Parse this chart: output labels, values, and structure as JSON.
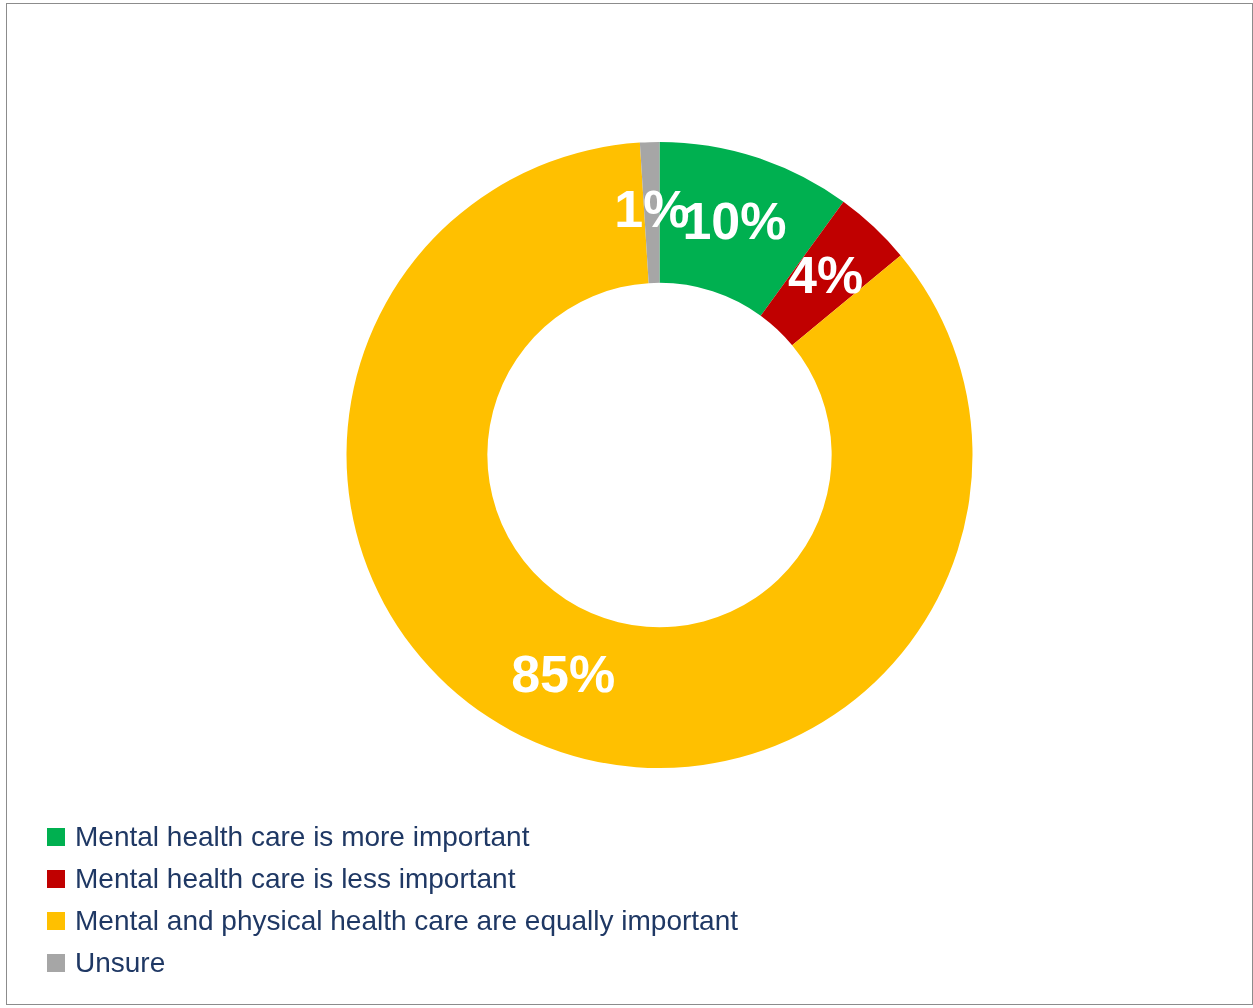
{
  "chart_data": {
    "type": "donut",
    "categories": [
      "Mental health care is more important",
      "Mental health care is less important",
      "Mental and physical health care are equally important",
      "Unsure"
    ],
    "values": [
      10,
      4,
      85,
      1
    ],
    "colors": [
      "#00b050",
      "#c00000",
      "#ffc000",
      "#a6a6a6"
    ],
    "value_labels": [
      "10%",
      "4%",
      "85%",
      "1%"
    ],
    "legend": "bottom left"
  }
}
